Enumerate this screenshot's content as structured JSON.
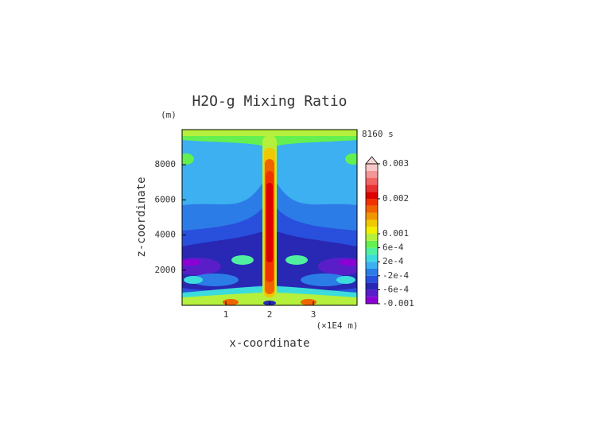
{
  "chart_data": {
    "type": "contour",
    "title": "H2O-g Mixing Ratio",
    "y_unit": "(m)",
    "time_label": "8160 s",
    "x_label": "x-coordinate",
    "x_unit": "(×1E4 m)",
    "y_label": "z-coordinate",
    "xlim": [
      0,
      4
    ],
    "xticks": [
      1,
      2,
      3
    ],
    "ylim": [
      0,
      10000
    ],
    "yticks": [
      2000,
      4000,
      6000,
      8000
    ],
    "levels": [
      -0.001,
      -0.0008,
      -0.0006,
      -0.0004,
      -0.0002,
      0,
      0.0002,
      0.0004,
      0.0006,
      0.0008,
      0.001,
      0.0012,
      0.0014,
      0.0016,
      0.0018,
      0.002,
      0.0022,
      0.0024,
      0.0026,
      0.0028,
      0.003
    ],
    "colors": [
      "#8c00d4",
      "#5a1ec8",
      "#2828b4",
      "#2850dc",
      "#2c7ce8",
      "#3cb0f0",
      "#3cdcdc",
      "#50f0a0",
      "#64f050",
      "#b4f03c",
      "#f0f000",
      "#f0c800",
      "#f09600",
      "#f06400",
      "#f03200",
      "#dc0000",
      "#e83030",
      "#f06464",
      "#f49696",
      "#f8c8c8"
    ],
    "extend_color": "#f8d8d8",
    "cbar_ticks": [
      -0.001,
      {
        "value": -0.0006,
        "label": "-6e-4"
      },
      {
        "value": -0.0002,
        "label": "-2e-4"
      },
      {
        "value": 0.0002,
        "label": "2e-4"
      },
      {
        "value": 0.0006,
        "label": "6e-4"
      },
      0.001,
      0.002,
      0.003
    ]
  }
}
